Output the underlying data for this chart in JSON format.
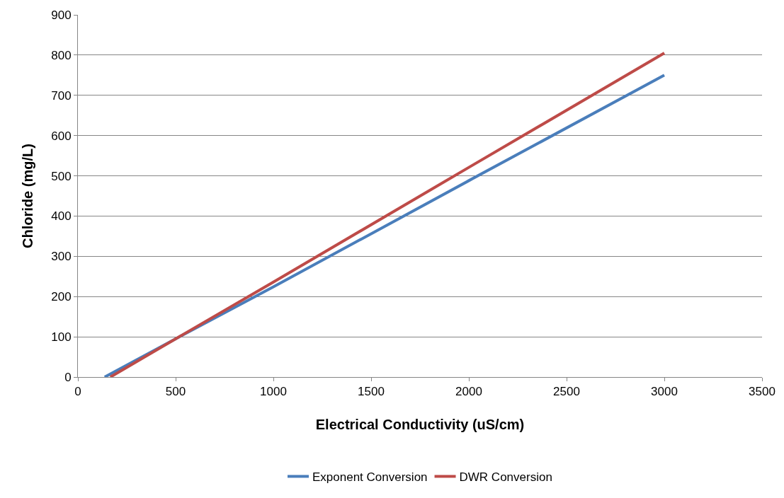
{
  "chart_data": {
    "type": "line",
    "xlabel": "Electrical Conductivity (uS/cm)",
    "ylabel": "Chloride (mg/L)",
    "xlim": [
      0,
      3500
    ],
    "xticks": [
      0,
      500,
      1000,
      1500,
      2000,
      2500,
      3000,
      3500
    ],
    "ylim": [
      0,
      900
    ],
    "yticks": [
      0,
      100,
      200,
      300,
      400,
      500,
      600,
      700,
      800,
      900
    ],
    "grid": "y",
    "legend": "bottom",
    "marker": "none",
    "line_style": "solid",
    "series": [
      {
        "name": "Exponent Conversion",
        "color": "#4a7ebb",
        "x": [
          137,
          500,
          1000,
          2000,
          3000
        ],
        "values": [
          0,
          95,
          224,
          488,
          750
        ]
      },
      {
        "name": "DWR Conversion",
        "color": "#be4b48",
        "x": [
          166,
          500,
          1000,
          2000,
          3000
        ],
        "values": [
          0,
          95,
          236,
          521,
          805
        ]
      }
    ]
  }
}
